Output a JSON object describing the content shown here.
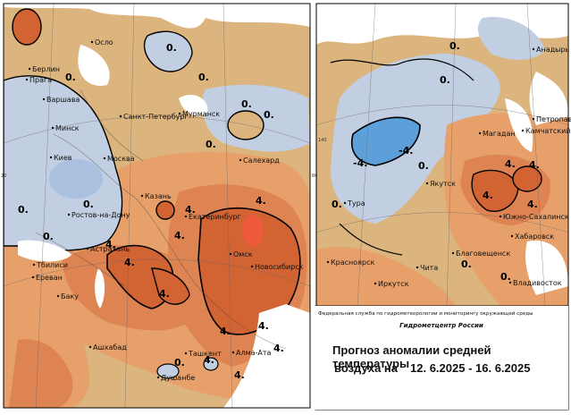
{
  "colors": {
    "background_land": "#dcb47e",
    "warm_light": "#e7a06a",
    "warm_mid": "#de8352",
    "warm_strong": "#d26332",
    "warm_peak": "#ef5a3c",
    "cold_light": "#c2cfe2",
    "cold_mid": "#a9c0de",
    "cold_strong": "#5d9fd8",
    "water": "#ffffff"
  },
  "left_map": {
    "cities": [
      "Осло",
      "Берлин",
      "Прага",
      "Варшава",
      "Минск",
      "Киев",
      "Мурманск",
      "Санкт-Петербург",
      "Москва",
      "Салехард",
      "Казань",
      "Ростов-на-Дону",
      "Екатеринбург",
      "Астрахань",
      "Омск",
      "Новосибирск",
      "Тбилиси",
      "Ереван",
      "Баку",
      "Ашхабад",
      "Ташкент",
      "Алма-Ата",
      "Душанбе"
    ],
    "isotherm_labels": [
      "0.",
      "0.",
      "0.",
      "0.",
      "0.",
      "0.",
      "0.",
      "0.",
      "0.",
      "0.",
      "4.",
      "4.",
      "4.",
      "4.",
      "4.",
      "4.",
      "4.",
      "4.",
      "4.",
      "4.",
      "4."
    ]
  },
  "right_map": {
    "cities": [
      "Анадырь",
      "Петропавловск",
      "Камчатский",
      "Магадан",
      "Якутск",
      "Тура",
      "Южно-Сахалинск",
      "Хабаровск",
      "Благовещенск",
      "Красноярск",
      "Чита",
      "Иркутск",
      "Владивосток"
    ],
    "isotherm_labels": [
      "0.",
      "0.",
      "0.",
      "0.",
      "-4.",
      "-4.",
      "4.",
      "4.",
      "4.",
      "4.",
      "0.",
      "0."
    ]
  },
  "footer": {
    "agency": "Федеральная служба по гидрометеорологии и мониторингу окружающей среды",
    "center": "Гидрометцентр России",
    "title_line1": "Прогноз аномалии средней температуры",
    "title_line2_prefix": "воздуха на",
    "title_line2_dates": "12. 6.2025 - 16. 6.2025"
  },
  "frame_tick_labels": [
    "20",
    "60",
    "140"
  ]
}
